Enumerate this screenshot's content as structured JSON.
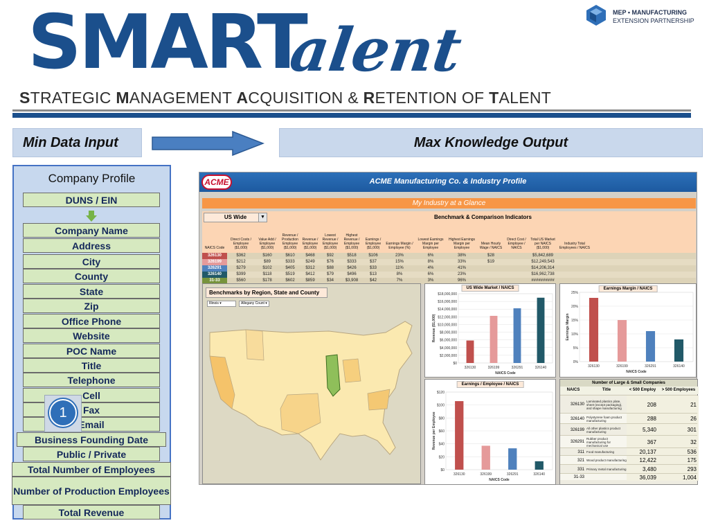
{
  "header": {
    "logo_smart": "SMART",
    "logo_talent": "alent",
    "logo_talent_initial": "T",
    "tagline": [
      {
        "cap": "S",
        "rest": "TRATEGIC "
      },
      {
        "cap": "M",
        "rest": "ANAGEMENT "
      },
      {
        "cap": "A",
        "rest": "CQUISITION & "
      },
      {
        "cap": "R",
        "rest": "ETENTION OF "
      },
      {
        "cap": "T",
        "rest": "ALENT"
      }
    ],
    "mep_line1": "MEP • MANUFACTURING",
    "mep_line2": "EXTENSION PARTNERSHIP"
  },
  "banners": {
    "left": "Min Data Input",
    "right": "Max Knowledge Output"
  },
  "profile": {
    "title": "Company Profile",
    "duns": "DUNS / EIN",
    "fields": [
      "Company Name",
      "Address",
      "City",
      "County",
      "State",
      "Zip",
      "Office Phone",
      "Website",
      "POC Name",
      "Title",
      "Telephone",
      "Cell",
      "Fax",
      "Email",
      "Business Founding  Date",
      "Public / Private",
      "Total Number of Employees",
      "Number of Production Employees",
      "Total Revenue"
    ],
    "badge": "1"
  },
  "dashboard": {
    "acme_logo": "ACME",
    "title": "ACME Manufacturing Co. & Industry Profile",
    "glance": "My Industry at a Glance",
    "region_select": "US Wide",
    "bench_title": "Benchmark & Comparison Indicators",
    "columns": [
      "NAICS Code",
      "Direct Costs / Employee ($1,000)",
      "Value Add / Employee ($1,000)",
      "Revenue / Production Employee ($1,000)",
      "Revenue / Employee ($1,000)",
      "Lowest Revenue / Employee ($1,000)",
      "Highest Revenue / Employee ($1,000)",
      "Earnings / Employee ($1,000)",
      "Earnings Margin / Employee (%)",
      "Lowest Earnings Margin per Employee",
      "Highest Earnings Margin per Employee",
      "Mean Hourly Wage / NAICS",
      "Direct Cost / Employee / NAICS",
      "Total US Market per NAICS ($1,000)",
      "Industry Total Employees / NAICS",
      ""
    ],
    "rows": [
      {
        "naics": "326130",
        "color": "#c0504d",
        "cells": [
          "$362",
          "$160",
          "$610",
          "$468",
          "$92",
          "$518",
          "$106",
          "23%",
          "6%",
          "38%",
          "$28",
          "",
          "$5,842,689",
          "",
          ""
        ]
      },
      {
        "naics": "326199",
        "color": "#e59a9a",
        "cells": [
          "$212",
          "$89",
          "$333",
          "$249",
          "$76",
          "$333",
          "$37",
          "15%",
          "8%",
          "33%",
          "$19",
          "",
          "$12,249,543",
          "",
          ""
        ]
      },
      {
        "naics": "326291",
        "color": "#4f81bd",
        "cells": [
          "$279",
          "$102",
          "$405",
          "$312",
          "$88",
          "$426",
          "$33",
          "11%",
          "4%",
          "41%",
          "",
          "",
          "$14,206,314",
          "",
          ""
        ]
      },
      {
        "naics": "326140",
        "color": "#215968",
        "cells": [
          "$399",
          "$118",
          "$519",
          "$412",
          "$79",
          "$496",
          "$13",
          "8%",
          "6%",
          "23%",
          "",
          "",
          "$16,962,738",
          "",
          ""
        ]
      },
      {
        "naics": "31-33",
        "color": "#77933c",
        "cells": [
          "$560",
          "$178",
          "$602",
          "$859",
          "$34",
          "$3,908",
          "$42",
          "7%",
          "3%",
          "96%",
          "",
          "",
          "##########",
          "",
          ""
        ]
      }
    ],
    "map": {
      "title": "Benchmarks by Region, State and County",
      "state_select": "Illinois",
      "county_select": "Allegany Count"
    },
    "size_table": {
      "title": "Number of Large & Small Companies",
      "headers": [
        "NAICS",
        "Title",
        "< 500 Employ",
        "> 500 Employees"
      ],
      "rows": [
        {
          "naics": "326130",
          "title": "Laminated plastics plate, sheet (except packaging), and shape manufacturing",
          "small": "208",
          "large": "21"
        },
        {
          "naics": "326140",
          "title": "Polystyrene foam product manufacturing",
          "small": "288",
          "large": "26"
        },
        {
          "naics": "326199",
          "title": "All other plastics product manufacturing",
          "small": "5,340",
          "large": "301"
        },
        {
          "naics": "326291",
          "title": "Rubber product manufacturing for mechanical use",
          "small": "367",
          "large": "32"
        },
        {
          "naics": "311",
          "title": "Food manufacturing",
          "small": "20,137",
          "large": "536"
        },
        {
          "naics": "321",
          "title": "Wood product manufacturing",
          "small": "12,422",
          "large": "175"
        },
        {
          "naics": "331",
          "title": "Primary metal manufacturing",
          "small": "3,480",
          "large": "293"
        },
        {
          "naics": "31-33",
          "title": "",
          "small": "36,039",
          "large": "1,004"
        }
      ]
    }
  },
  "chart_data": [
    {
      "type": "bar",
      "title": "US Wide Market / NAICS",
      "categories": [
        "326130",
        "326199",
        "326291",
        "326140"
      ],
      "values": [
        5842689,
        12249543,
        14206314,
        16962738
      ],
      "colors": [
        "#c0504d",
        "#e59a9a",
        "#4f81bd",
        "#215968"
      ],
      "xlabel": "NAICS Code",
      "ylabel": "Revenue ($1,000)",
      "ylim": [
        0,
        18000000
      ],
      "ticks": [
        "$0",
        "$2,000,000",
        "$4,000,000",
        "$6,000,000",
        "$8,000,000",
        "$10,000,000",
        "$12,000,000",
        "$14,000,000",
        "$16,000,000",
        "$18,000,000"
      ]
    },
    {
      "type": "bar",
      "title": "Earnings Margin / NAICS",
      "categories": [
        "326130",
        "326199",
        "326291",
        "326140"
      ],
      "values": [
        23,
        15,
        11,
        8
      ],
      "colors": [
        "#c0504d",
        "#e59a9a",
        "#4f81bd",
        "#215968"
      ],
      "xlabel": "NAICS Code",
      "ylabel": "Earnings Margin",
      "ylim": [
        0,
        25
      ],
      "ticks": [
        "0%",
        "5%",
        "10%",
        "15%",
        "20%",
        "25%"
      ]
    },
    {
      "type": "bar",
      "title": "Earnings / Employee / NAICS",
      "categories": [
        "326130",
        "326199",
        "326291",
        "326140"
      ],
      "values": [
        106,
        37,
        33,
        13
      ],
      "colors": [
        "#c0504d",
        "#e59a9a",
        "#4f81bd",
        "#215968"
      ],
      "xlabel": "NAICS Code",
      "ylabel": "Revenue per Employee",
      "ylim": [
        0,
        120
      ],
      "ticks": [
        "$0",
        "$20",
        "$40",
        "$60",
        "$80",
        "$100",
        "$120"
      ]
    }
  ]
}
